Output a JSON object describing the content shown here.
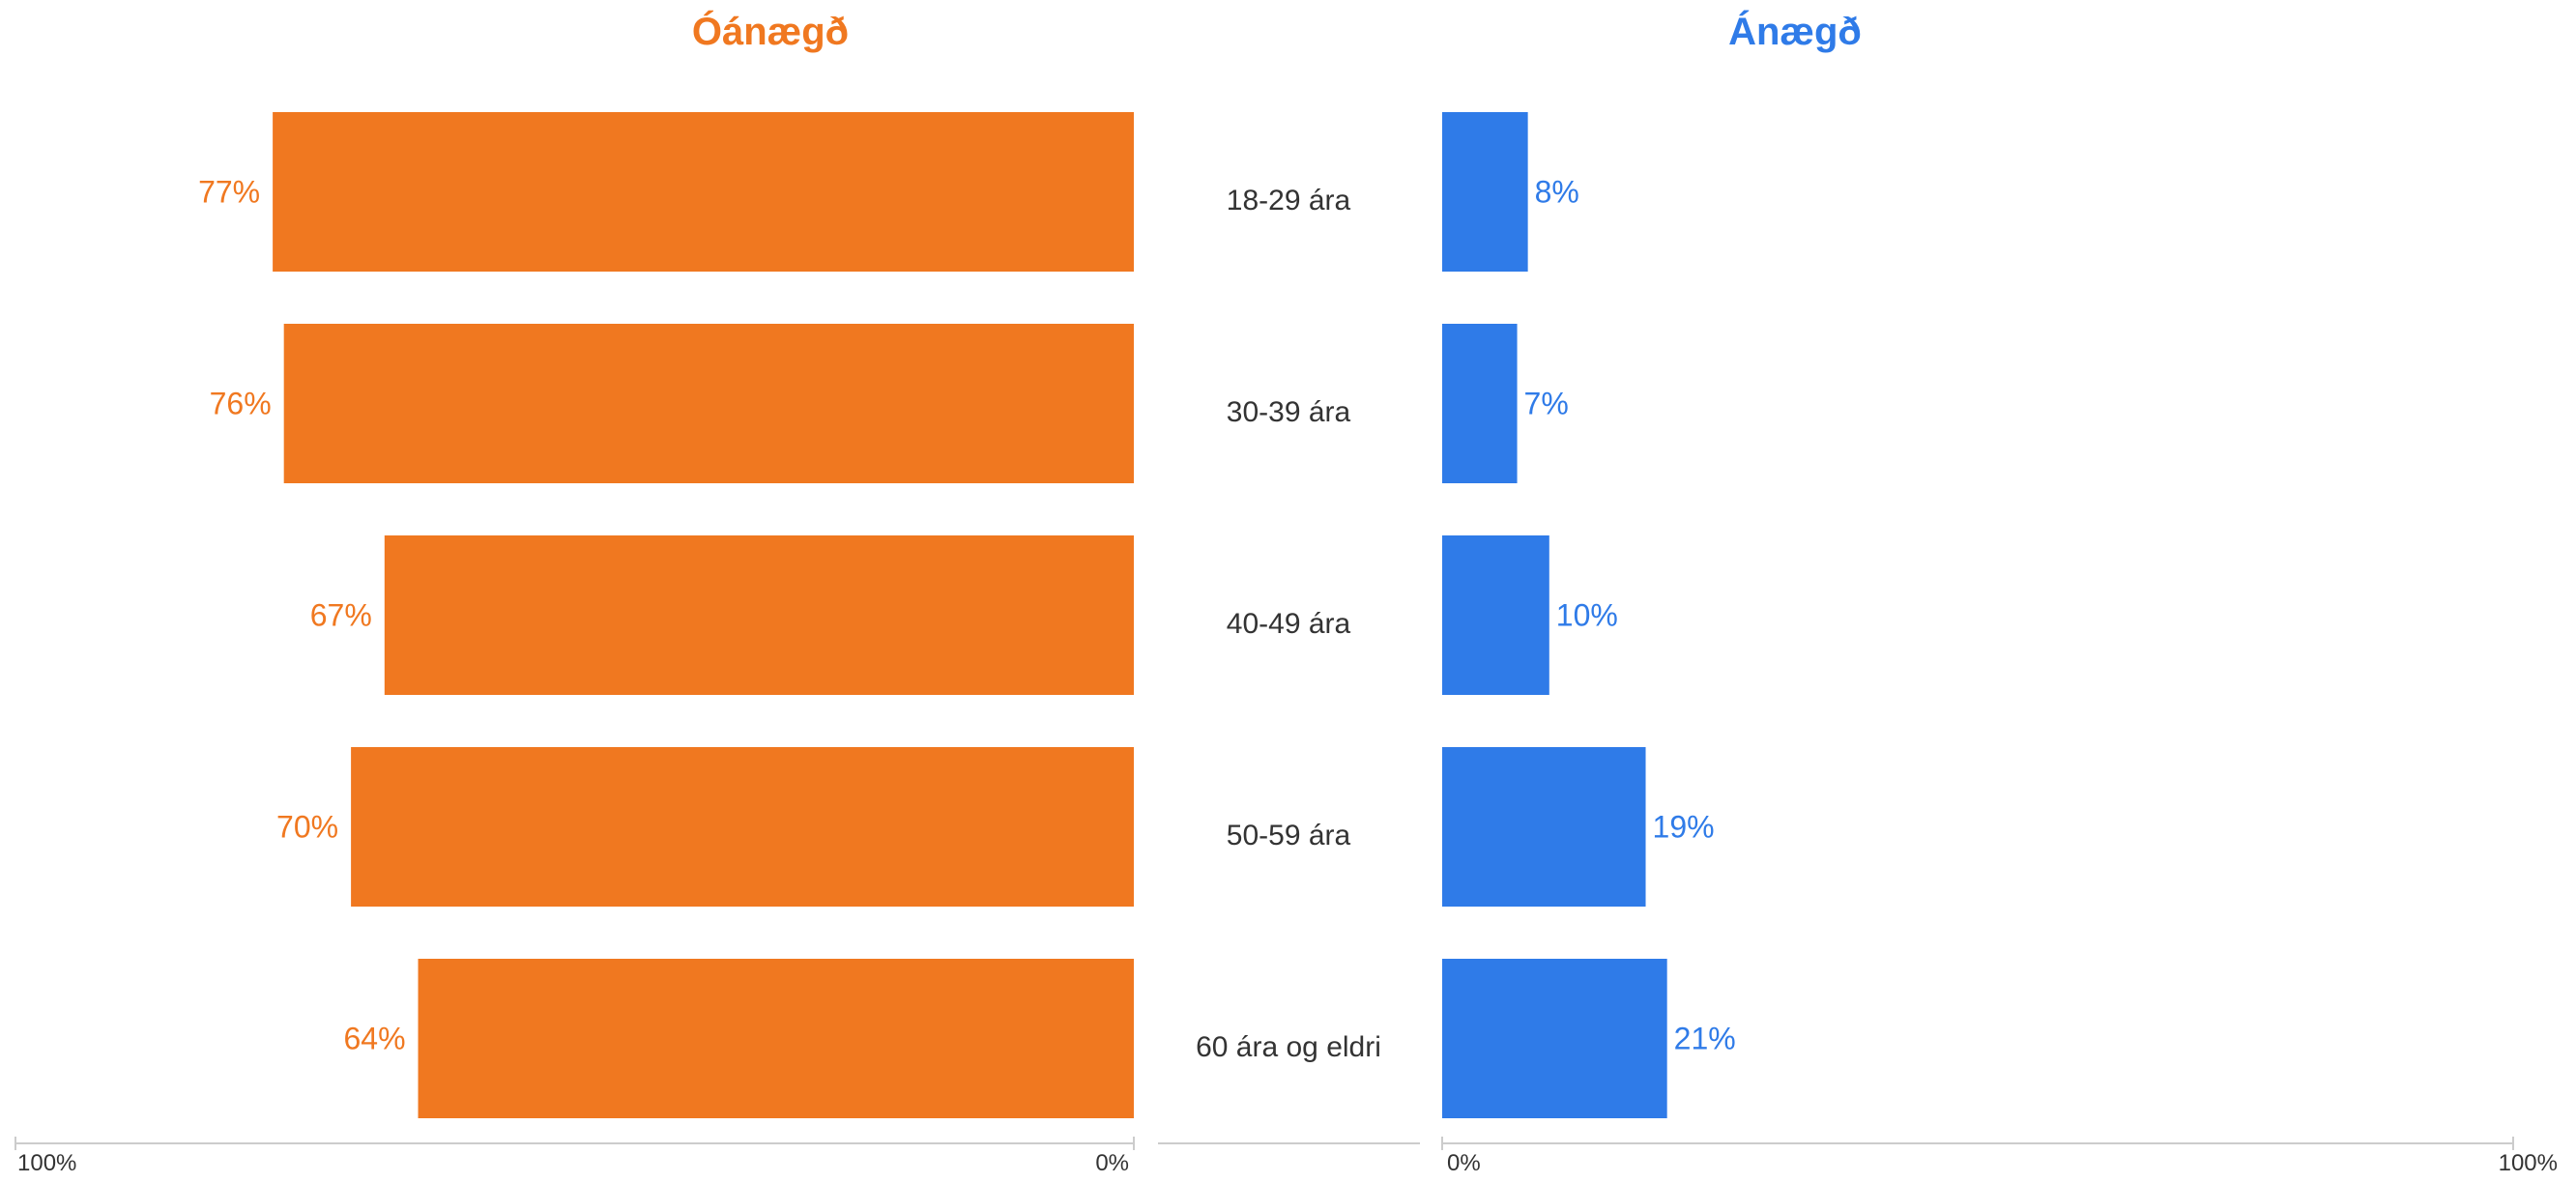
{
  "chart_data": {
    "type": "bar",
    "categories": [
      "18-29 ára",
      "30-39 ára",
      "40-49 ára",
      "50-59 ára",
      "60 ára og eldri"
    ],
    "series": [
      {
        "name": "Óánægð",
        "color": "#F07820",
        "values": [
          77,
          76,
          67,
          70,
          64
        ],
        "labels": [
          "77%",
          "76%",
          "67%",
          "70%",
          "64%"
        ],
        "axis": {
          "range": [
            0,
            100
          ],
          "direction": "reversed",
          "tick_labels": [
            "100%",
            "0%"
          ]
        }
      },
      {
        "name": "Ánægð",
        "color": "#2F7BE8",
        "values": [
          8,
          7,
          10,
          19,
          21
        ],
        "labels": [
          "8%",
          "7%",
          "10%",
          "19%",
          "21%"
        ],
        "axis": {
          "range": [
            0,
            100
          ],
          "direction": "normal",
          "tick_labels": [
            "0%",
            "100%"
          ]
        }
      }
    ],
    "category_text_color": "#333333",
    "axis_color": "#CCCCCC",
    "tick_text_color": "#333333",
    "grid": false
  }
}
